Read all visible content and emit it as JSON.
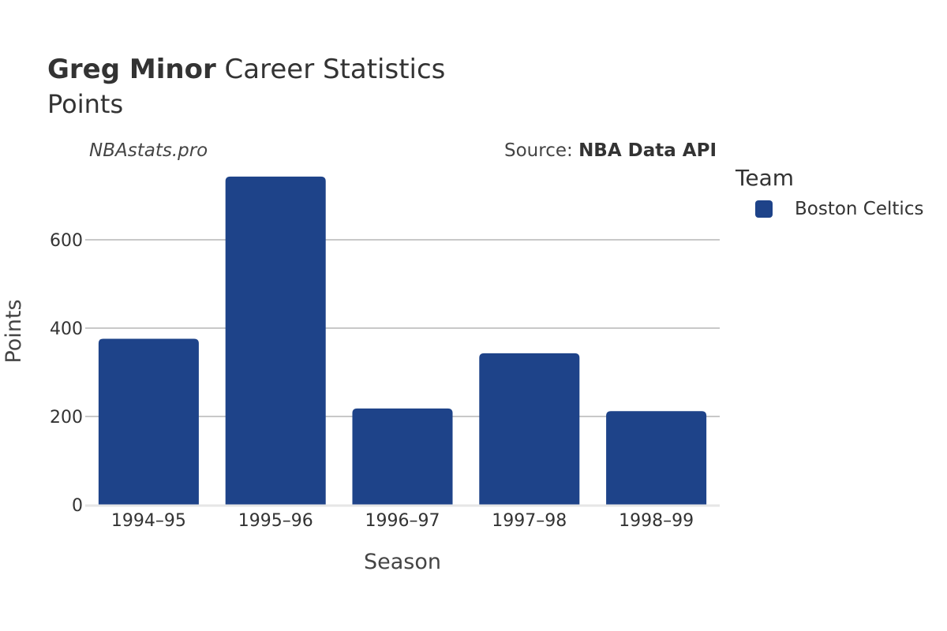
{
  "header": {
    "title_bold": "Greg Minor",
    "title_rest": "Career Statistics",
    "subtitle": "Points",
    "watermark": "NBAstats.pro",
    "source_prefix": "Source:",
    "source_name": "NBA Data API"
  },
  "legend": {
    "title": "Team",
    "items": [
      {
        "label": "Boston Celtics",
        "color": "#1e4389"
      }
    ]
  },
  "chart_data": {
    "type": "bar",
    "categories": [
      "1994–95",
      "1995–96",
      "1996–97",
      "1997–98",
      "1998–99"
    ],
    "series": [
      {
        "name": "Boston Celtics",
        "color": "#1e4389",
        "values": [
          376,
          743,
          218,
          343,
          212
        ]
      }
    ],
    "xlabel": "Season",
    "ylabel": "Points",
    "ylim": [
      0,
      780
    ],
    "yticks": [
      0,
      200,
      400,
      600
    ],
    "grid": true,
    "legend_position": "right"
  }
}
